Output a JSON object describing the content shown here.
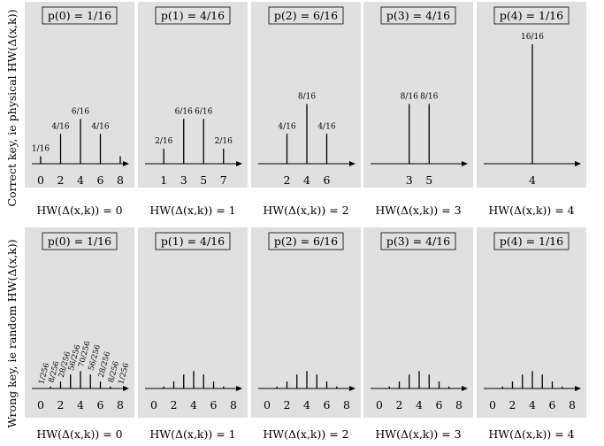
{
  "figure": {
    "top_ylabel": "Correct key, ie physical HW(Δ(x,k))",
    "bottom_ylabel": "Wrong key, ie random HW(Δ(x,k))",
    "background": "#e0e0e0",
    "stem_color": "#000000"
  },
  "chart_data": [
    {
      "type": "bar",
      "row": "correct",
      "panel": 0,
      "title": "p(0) = 1/16",
      "xlabel": "HW(Δ(x,k)) = 0",
      "x": [
        0,
        2,
        4,
        6,
        8
      ],
      "values": [
        1,
        4,
        6,
        4,
        1
      ],
      "labels": [
        "1/16",
        "4/16",
        "6/16",
        "4/16",
        ""
      ],
      "xticks": [
        "0",
        "2",
        "4",
        "6",
        "8"
      ],
      "xlim": [
        0,
        8
      ],
      "ylim": [
        0,
        16
      ]
    },
    {
      "type": "bar",
      "row": "correct",
      "panel": 1,
      "title": "p(1) = 4/16",
      "xlabel": "HW(Δ(x,k)) = 1",
      "x": [
        1,
        3,
        5,
        7
      ],
      "values": [
        2,
        6,
        6,
        2
      ],
      "labels": [
        "2/16",
        "6/16",
        "6/16",
        "2/16"
      ],
      "xticks": [
        "1",
        "3",
        "5",
        "7"
      ],
      "xlim": [
        0,
        8
      ],
      "ylim": [
        0,
        16
      ]
    },
    {
      "type": "bar",
      "row": "correct",
      "panel": 2,
      "title": "p(2) = 6/16",
      "xlabel": "HW(Δ(x,k)) = 2",
      "x": [
        2,
        4,
        6
      ],
      "values": [
        4,
        8,
        4
      ],
      "labels": [
        "4/16",
        "8/16",
        "4/16"
      ],
      "xticks": [
        "2",
        "4",
        "6"
      ],
      "xlim": [
        0,
        8
      ],
      "ylim": [
        0,
        16
      ]
    },
    {
      "type": "bar",
      "row": "correct",
      "panel": 3,
      "title": "p(3) = 4/16",
      "xlabel": "HW(Δ(x,k)) = 3",
      "x": [
        3,
        5
      ],
      "values": [
        8,
        8
      ],
      "labels": [
        "8/16",
        "8/16"
      ],
      "xticks": [
        "3",
        "5"
      ],
      "xlim": [
        0,
        8
      ],
      "ylim": [
        0,
        16
      ]
    },
    {
      "type": "bar",
      "row": "correct",
      "panel": 4,
      "title": "p(4) = 1/16",
      "xlabel": "HW(Δ(x,k)) = 4",
      "x": [
        4
      ],
      "values": [
        16
      ],
      "labels": [
        "16/16"
      ],
      "xticks": [
        "4"
      ],
      "xlim": [
        0,
        8
      ],
      "ylim": [
        0,
        16
      ]
    },
    {
      "type": "bar",
      "row": "wrong",
      "panel": 0,
      "title": "p(0) = 1/16",
      "xlabel": "HW(Δ(x,k)) = 0",
      "x": [
        0,
        1,
        2,
        3,
        4,
        5,
        6,
        7,
        8
      ],
      "values": [
        1,
        8,
        28,
        56,
        70,
        56,
        28,
        8,
        1
      ],
      "labels": [
        "1/256",
        "8/256",
        "28/256",
        "56/256",
        "70/256",
        "56/256",
        "28/256",
        "8/256",
        "1/256"
      ],
      "xticks": [
        "0",
        "2",
        "4",
        "6",
        "8"
      ],
      "xlim": [
        0,
        8
      ],
      "ylim": [
        0,
        256
      ]
    },
    {
      "type": "bar",
      "row": "wrong",
      "panel": 1,
      "title": "p(1) = 4/16",
      "xlabel": "HW(Δ(x,k)) = 1",
      "x": [
        0,
        1,
        2,
        3,
        4,
        5,
        6,
        7,
        8
      ],
      "values": [
        1,
        8,
        28,
        56,
        70,
        56,
        28,
        8,
        1
      ],
      "labels": [],
      "xticks": [
        "0",
        "2",
        "4",
        "6",
        "8"
      ],
      "xlim": [
        0,
        8
      ],
      "ylim": [
        0,
        256
      ]
    },
    {
      "type": "bar",
      "row": "wrong",
      "panel": 2,
      "title": "p(2) = 6/16",
      "xlabel": "HW(Δ(x,k)) = 2",
      "x": [
        0,
        1,
        2,
        3,
        4,
        5,
        6,
        7,
        8
      ],
      "values": [
        1,
        8,
        28,
        56,
        70,
        56,
        28,
        8,
        1
      ],
      "labels": [],
      "xticks": [
        "0",
        "2",
        "4",
        "6",
        "8"
      ],
      "xlim": [
        0,
        8
      ],
      "ylim": [
        0,
        256
      ]
    },
    {
      "type": "bar",
      "row": "wrong",
      "panel": 3,
      "title": "p(3) = 4/16",
      "xlabel": "HW(Δ(x,k)) = 3",
      "x": [
        0,
        1,
        2,
        3,
        4,
        5,
        6,
        7,
        8
      ],
      "values": [
        1,
        8,
        28,
        56,
        70,
        56,
        28,
        8,
        1
      ],
      "labels": [],
      "xticks": [
        "0",
        "2",
        "4",
        "6",
        "8"
      ],
      "xlim": [
        0,
        8
      ],
      "ylim": [
        0,
        256
      ]
    },
    {
      "type": "bar",
      "row": "wrong",
      "panel": 4,
      "title": "p(4) = 1/16",
      "xlabel": "HW(Δ(x,k)) = 4",
      "x": [
        0,
        1,
        2,
        3,
        4,
        5,
        6,
        7,
        8
      ],
      "values": [
        1,
        8,
        28,
        56,
        70,
        56,
        28,
        8,
        1
      ],
      "labels": [],
      "xticks": [
        "0",
        "2",
        "4",
        "6",
        "8"
      ],
      "xlim": [
        0,
        8
      ],
      "ylim": [
        0,
        256
      ]
    }
  ]
}
